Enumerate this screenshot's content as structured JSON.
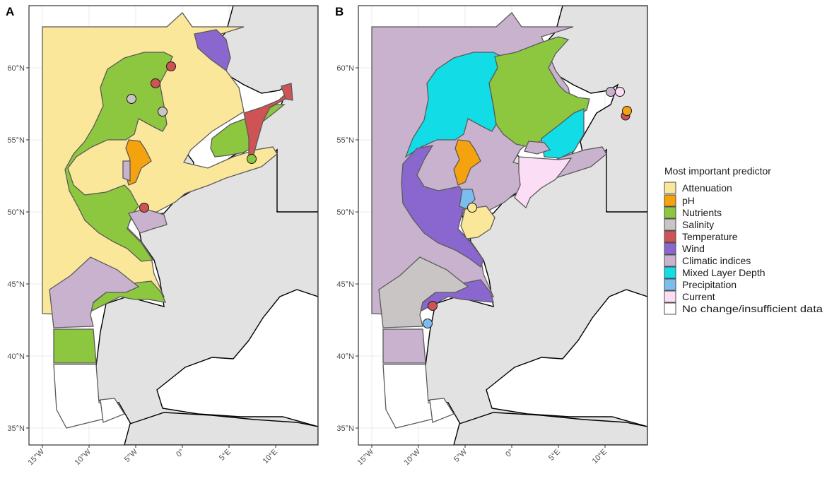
{
  "panels": [
    {
      "id": "A",
      "letter": "A"
    },
    {
      "id": "B",
      "letter": "B"
    }
  ],
  "axes": {
    "lat_ticks": [
      "35°N",
      "40°N",
      "45°N",
      "50°N",
      "55°N",
      "60°N"
    ],
    "lon_ticks": [
      "15°W",
      "10°W",
      "5°W",
      "0°",
      "5°E",
      "10°E"
    ]
  },
  "legend": {
    "title": "Most important predictor",
    "items": [
      {
        "label": "Attenuation",
        "color": "#FBE79A"
      },
      {
        "label": "pH",
        "color": "#F4A20E"
      },
      {
        "label": "Nutrients",
        "color": "#8DC63F"
      },
      {
        "label": "Salinity",
        "color": "#C9C5C5"
      },
      {
        "label": "Temperature",
        "color": "#CD5355"
      },
      {
        "label": "Wind",
        "color": "#8967CF"
      },
      {
        "label": "Climatic indices",
        "color": "#C9B2CE"
      },
      {
        "label": "Mixed Layer Depth",
        "color": "#12DCE6"
      },
      {
        "label": "Precipitation",
        "color": "#7CBDF0"
      },
      {
        "label": "Current",
        "color": "#FBDDF5"
      },
      {
        "label": "No change/insufficient data",
        "color": "#FFFFFF"
      }
    ]
  },
  "colors": {
    "land": "#E2E2E2",
    "outline": "#5a5a5a",
    "coast": "#000000",
    "grid": "#EBEBEB",
    "frame": "#333333"
  }
}
